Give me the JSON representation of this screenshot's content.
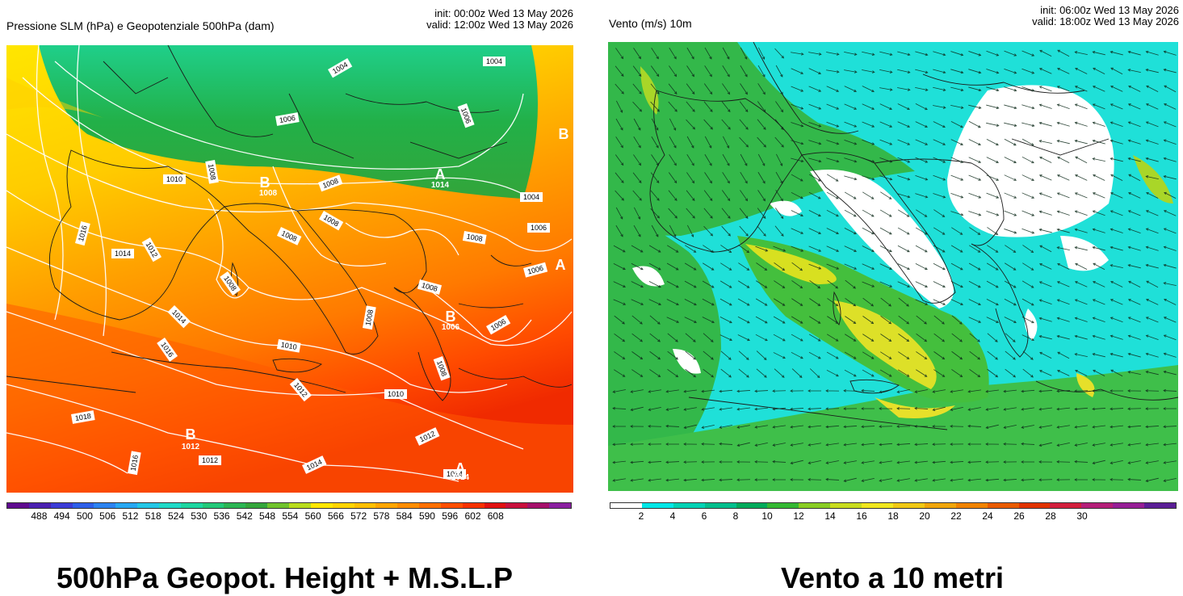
{
  "left": {
    "title": "Pressione SLM (hPa) e Geopotenziale 500hPa (dam)",
    "init": "init: 00:00z Wed 13 May 2026",
    "valid": "valid: 12:00z Wed 13 May 2026",
    "caption": "500hPa Geopot. Height + M.S.L.P",
    "colorbar_ticks": [
      "488",
      "494",
      "500",
      "506",
      "512",
      "518",
      "524",
      "530",
      "536",
      "542",
      "548",
      "554",
      "560",
      "566",
      "572",
      "578",
      "584",
      "590",
      "596",
      "602",
      "608"
    ],
    "colorbar_colors": [
      "#5e0b8f",
      "#4a20b0",
      "#3b3bd6",
      "#2d5ee8",
      "#2b82f0",
      "#26a7f2",
      "#22c6e6",
      "#1fd9c7",
      "#1cd6a0",
      "#22c878",
      "#2bb553",
      "#33a53a",
      "#6fc22b",
      "#b8dc1c",
      "#ffe600",
      "#ffd400",
      "#ffbf00",
      "#ffa500",
      "#ff8c00",
      "#ff6e00",
      "#ff4d00",
      "#f53000",
      "#e01010",
      "#c80f3c",
      "#a50f6a",
      "#8a1fa0"
    ],
    "isobar_labels": [
      "1004",
      "1004",
      "1004",
      "1006",
      "1006",
      "1006",
      "1008",
      "1008",
      "1008",
      "1008",
      "1008",
      "1008",
      "1008",
      "1008",
      "1010",
      "1010",
      "1010",
      "1012",
      "1012",
      "1012",
      "1012",
      "1014",
      "1014",
      "1014",
      "1014",
      "1016",
      "1016",
      "1016",
      "1018",
      "1008",
      "1006",
      "1006"
    ],
    "centers": [
      {
        "letter": "B",
        "value": ""
      },
      {
        "letter": "B",
        "value": "1008"
      },
      {
        "letter": "A",
        "value": "1014"
      },
      {
        "letter": "A",
        "value": ""
      },
      {
        "letter": "B",
        "value": "1006"
      },
      {
        "letter": "B",
        "value": "1012"
      },
      {
        "letter": "A",
        "value": "1014"
      }
    ]
  },
  "right": {
    "title": "Vento (m/s) 10m",
    "init": "init: 06:00z Wed 13 May 2026",
    "valid": "valid: 18:00z Wed 13 May 2026",
    "caption": "Vento a 10 metri",
    "colorbar_ticks": [
      "2",
      "4",
      "6",
      "8",
      "10",
      "12",
      "14",
      "16",
      "18",
      "20",
      "22",
      "24",
      "26",
      "28",
      "30"
    ],
    "colorbar_colors": [
      "#ffffff",
      "#00e6e6",
      "#00d2b4",
      "#00be8c",
      "#00aa5a",
      "#33b832",
      "#88cc22",
      "#c8dc1e",
      "#f0e61e",
      "#f0c814",
      "#f0a50a",
      "#f08200",
      "#e85a00",
      "#e03200",
      "#d21e3c",
      "#b41e78",
      "#961e96",
      "#5a1e96"
    ]
  }
}
